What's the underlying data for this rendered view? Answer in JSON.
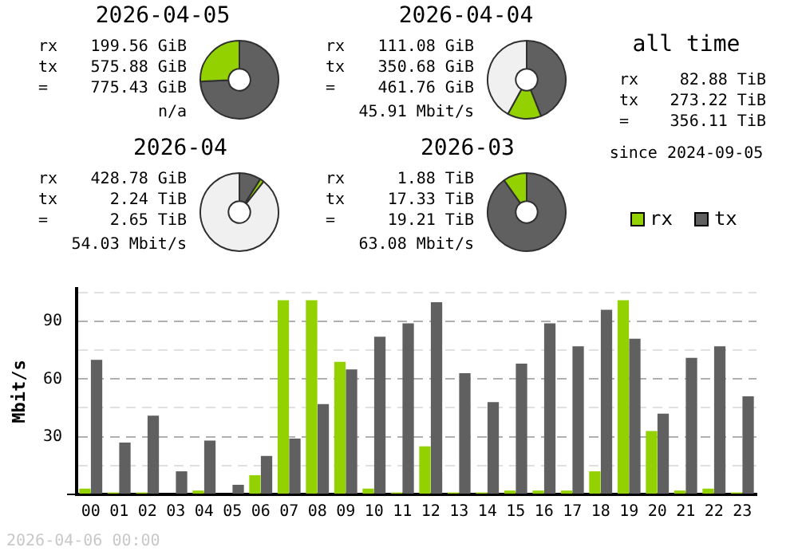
{
  "chart_data": [
    {
      "type": "donut",
      "title": "2026-04-05",
      "categories": [
        null,
        null
      ],
      "values": [
        74.3,
        25.7
      ],
      "colors": [
        "#606060",
        "#94d100"
      ],
      "annotations": [
        "rx 199.56 GiB",
        "tx 575.88 GiB",
        "= 775.43 GiB",
        "n/a"
      ]
    },
    {
      "type": "donut",
      "title": "2026-04-04",
      "categories": [
        null,
        null,
        null
      ],
      "values": [
        44,
        14,
        42
      ],
      "colors": [
        "#606060",
        "#94d100",
        "#f0f0f0"
      ],
      "annotations": [
        "rx 111.08 GiB",
        "tx 350.68 GiB",
        "= 461.76 GiB",
        "45.91 Mbit/s"
      ]
    },
    {
      "type": "other",
      "title": "all time",
      "annotations": [
        "rx 82.88 TiB",
        "tx 273.22 TiB",
        "= 356.11 TiB",
        "since 2024-09-05"
      ]
    },
    {
      "type": "donut",
      "title": "2026-04",
      "categories": [
        null,
        null,
        null
      ],
      "values": [
        9,
        1.7,
        89.3
      ],
      "colors": [
        "#606060",
        "#94d100",
        "#f0f0f0"
      ],
      "annotations": [
        "rx 428.78 GiB",
        "tx 2.24 TiB",
        "= 2.65 TiB",
        "54.03 Mbit/s"
      ]
    },
    {
      "type": "donut",
      "title": "2026-03",
      "categories": [
        null,
        null
      ],
      "values": [
        90.2,
        9.8
      ],
      "colors": [
        "#606060",
        "#94d100"
      ],
      "annotations": [
        "rx 1.88 TiB",
        "tx 17.33 TiB",
        "= 19.21 TiB",
        "63.08 Mbit/s"
      ]
    },
    {
      "type": "bar",
      "ylabel": "Mbit/s",
      "categories": [
        "00",
        "01",
        "02",
        "03",
        "04",
        "05",
        "06",
        "07",
        "08",
        "09",
        "10",
        "11",
        "12",
        "13",
        "14",
        "15",
        "16",
        "17",
        "18",
        "19",
        "20",
        "21",
        "22",
        "23"
      ],
      "series": [
        {
          "name": "rx",
          "color": "#94d100",
          "values": [
            3,
            1,
            1,
            0,
            2,
            0,
            10,
            101,
            101,
            69,
            3,
            1,
            25,
            1,
            1,
            2,
            2,
            2,
            12,
            101,
            33,
            2,
            3,
            1
          ]
        },
        {
          "name": "tx",
          "color": "#606060",
          "values": [
            70,
            27,
            41,
            12,
            28,
            5,
            20,
            29,
            47,
            65,
            82,
            89,
            100,
            63,
            48,
            68,
            89,
            77,
            96,
            81,
            42,
            71,
            77,
            51
          ]
        }
      ],
      "ylim": [
        0,
        107
      ],
      "yticks": [
        {
          "value": 0,
          "label": null
        },
        {
          "value": 15,
          "label": null
        },
        30,
        {
          "value": 45,
          "label": null
        },
        60,
        {
          "value": 75,
          "label": null
        },
        90,
        {
          "value": 105,
          "label": null
        }
      ],
      "grid": "y",
      "legend": "top right",
      "annotations": [
        "2026-04-06 00:00"
      ]
    }
  ]
}
